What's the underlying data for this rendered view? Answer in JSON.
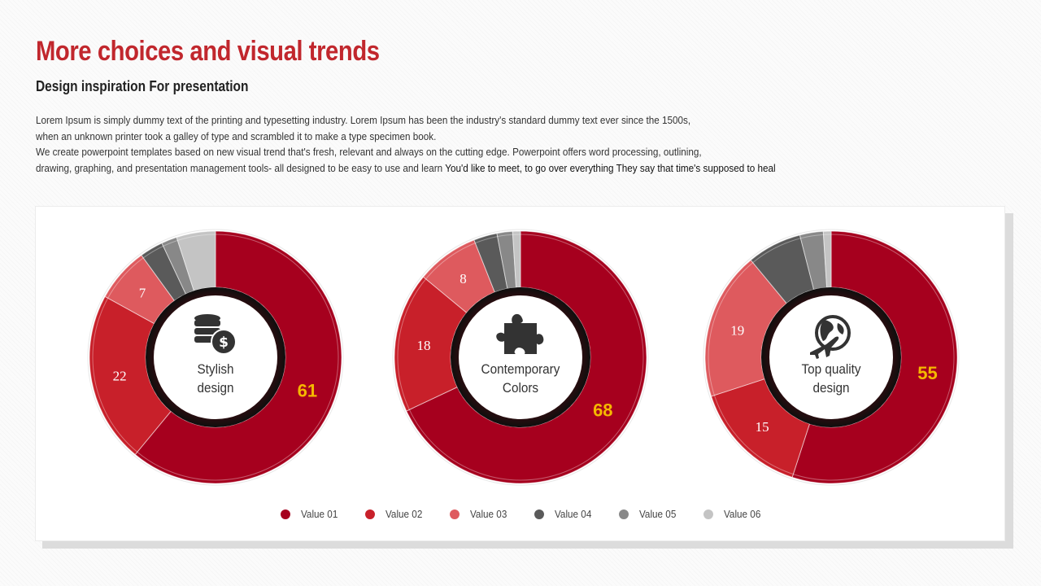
{
  "header": {
    "title": "More choices and visual trends",
    "subtitle": "Design inspiration For presentation"
  },
  "body": {
    "lines": [
      "Lorem Ipsum is simply dummy text of the printing and typesetting industry. Lorem Ipsum has been the industry's standard dummy text ever since the 1500s,",
      "when an unknown printer took a galley of type and scrambled it to make a type specimen book.",
      "We create powerpoint templates based on new visual trend that's fresh, relevant and always on the cutting edge. Powerpoint offers word processing, outlining,",
      "drawing, graphing, and presentation management tools- all designed to be easy to use and learn"
    ],
    "tail": " You'd like to meet, to go over everything They say that time's supposed to heal"
  },
  "colors": {
    "title": "#c1272d",
    "highlight": "#f5b800",
    "series": [
      "#a6001e",
      "#c8202a",
      "#de5a5e",
      "#5a5a5a",
      "#888888",
      "#c4c4c4"
    ]
  },
  "chart_data": [
    {
      "type": "pie",
      "center_label": [
        "Stylish",
        "design"
      ],
      "icon": "database-dollar-icon",
      "series": [
        "Value 01",
        "Value 02",
        "Value 03",
        "Value 04",
        "Value 05",
        "Value 06"
      ],
      "values": [
        61,
        22,
        7,
        3,
        2,
        5
      ],
      "labels": [
        "61",
        "22",
        "7",
        "",
        "",
        ""
      ]
    },
    {
      "type": "pie",
      "center_label": [
        "Contemporary",
        "Colors"
      ],
      "icon": "puzzle-piece-icon",
      "series": [
        "Value 01",
        "Value 02",
        "Value 03",
        "Value 04",
        "Value 05",
        "Value 06"
      ],
      "values": [
        68,
        18,
        8,
        3,
        2,
        1
      ],
      "labels": [
        "68",
        "18",
        "8",
        "",
        "",
        ""
      ]
    },
    {
      "type": "pie",
      "center_label": [
        "Top quality",
        "design"
      ],
      "icon": "globe-plane-icon",
      "series": [
        "Value 01",
        "Value 02",
        "Value 03",
        "Value 04",
        "Value 05",
        "Value 06"
      ],
      "values": [
        55,
        15,
        19,
        7,
        3,
        1
      ],
      "labels": [
        "55",
        "15",
        "19",
        "",
        "",
        ""
      ]
    }
  ],
  "legend": [
    "Value 01",
    "Value 02",
    "Value 03",
    "Value 04",
    "Value 05",
    "Value 06"
  ]
}
